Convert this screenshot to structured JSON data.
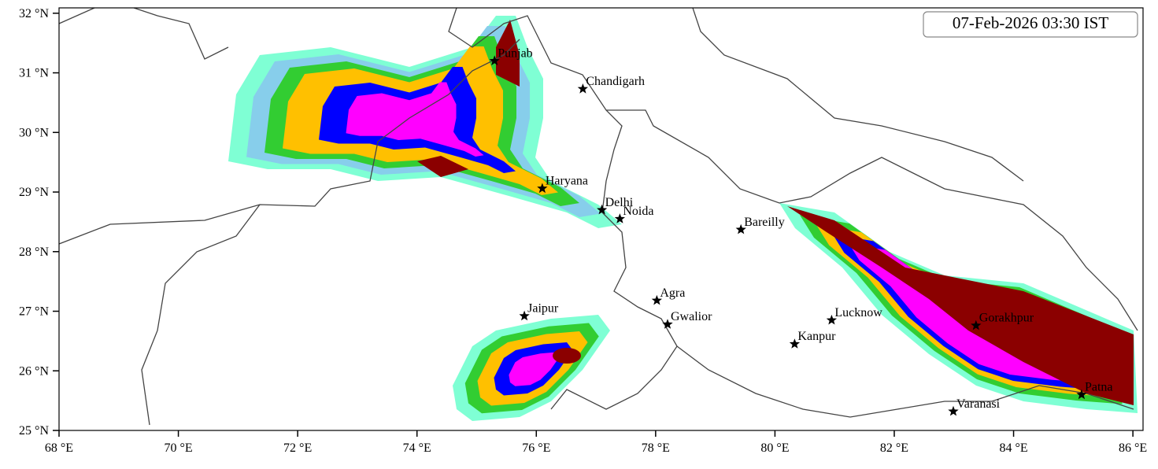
{
  "chart_data": {
    "type": "scatter",
    "title": "07-Feb-2026 03:30 IST",
    "labels": [
      "Punjab",
      "Chandigarh",
      "Haryana",
      "Delhi",
      "Noida",
      "Bareilly",
      "Agra",
      "Jaipur",
      "Gwalior",
      "Lucknow",
      "Kanpur",
      "Gorakhpur",
      "Varanasi",
      "Patna"
    ],
    "x": [
      75.3,
      76.78,
      76.1,
      77.1,
      77.4,
      79.43,
      78.02,
      75.8,
      78.2,
      80.95,
      80.33,
      83.37,
      82.99,
      85.14
    ],
    "y": [
      31.2,
      30.73,
      29.06,
      28.7,
      28.55,
      28.37,
      27.18,
      26.92,
      26.78,
      26.85,
      26.45,
      26.76,
      25.32,
      25.6
    ],
    "color": "#000000",
    "xlim": [
      68,
      86.17
    ],
    "ylim": [
      25,
      32.09
    ],
    "xticks": [
      {
        "value": 68,
        "label": "68 °E"
      },
      {
        "value": 70,
        "label": "70 °E"
      },
      {
        "value": 72,
        "label": "72 °E"
      },
      {
        "value": 74,
        "label": "74 °E"
      },
      {
        "value": 76,
        "label": "76 °E"
      },
      {
        "value": 78,
        "label": "78 °E"
      },
      {
        "value": 80,
        "label": "80 °E"
      },
      {
        "value": 82,
        "label": "82 °E"
      },
      {
        "value": 84,
        "label": "84 °E"
      },
      {
        "value": 86,
        "label": "86 °E"
      }
    ],
    "yticks": [
      {
        "value": 25,
        "label": "25 °N"
      },
      {
        "value": 26,
        "label": "26 °N"
      },
      {
        "value": 27,
        "label": "27 °N"
      },
      {
        "value": 28,
        "label": "28 °N"
      },
      {
        "value": 29,
        "label": "29 °N"
      },
      {
        "value": 30,
        "label": "30 °N"
      },
      {
        "value": 31,
        "label": "31 °N"
      },
      {
        "value": 32,
        "label": "32 °N"
      }
    ]
  }
}
